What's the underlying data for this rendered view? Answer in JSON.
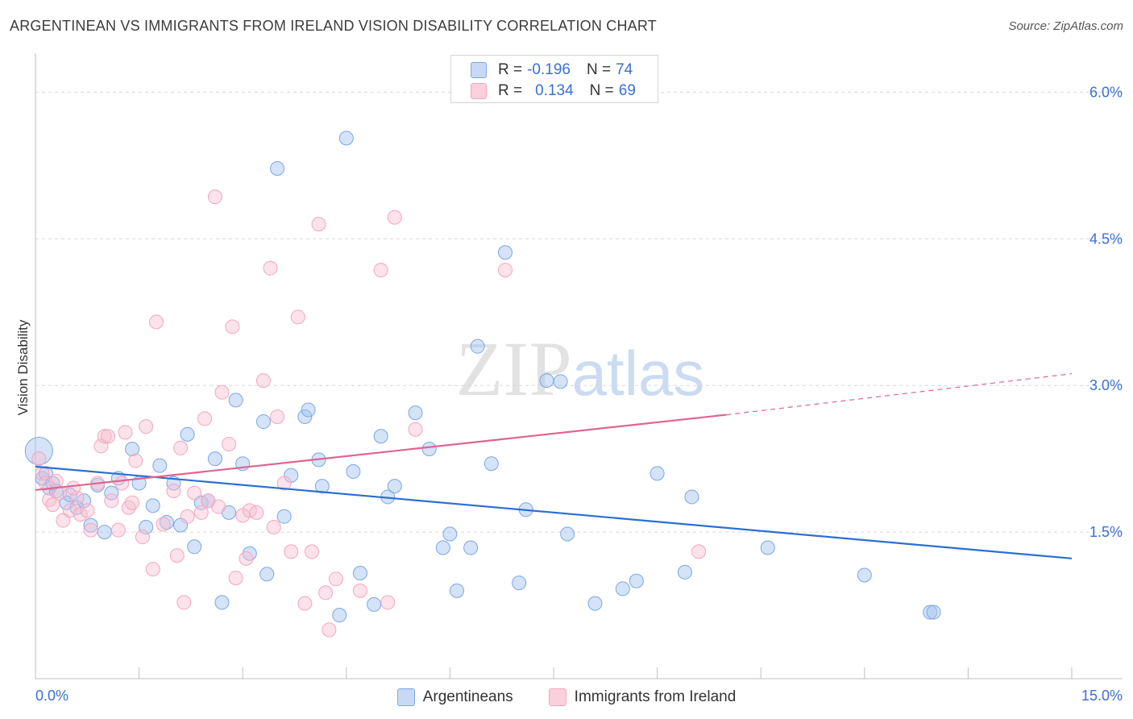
{
  "chart_data": {
    "type": "scatter",
    "title": "ARGENTINEAN VS IMMIGRANTS FROM IRELAND VISION DISABILITY CORRELATION CHART",
    "source": "Source: ZipAtlas.com",
    "ylabel": "Vision Disability",
    "xlabel": "",
    "xlim": [
      0,
      15
    ],
    "ylim": [
      0,
      6.3
    ],
    "x_tick_labels": [
      "0.0%",
      "15.0%"
    ],
    "y_ticks": [
      1.5,
      3.0,
      4.5,
      6.0
    ],
    "y_tick_labels": [
      "1.5%",
      "3.0%",
      "4.5%",
      "6.0%"
    ],
    "grid": true,
    "legend_position": "top-center",
    "watermark": "ZIPatlas",
    "series": [
      {
        "name": "Argentineans",
        "color": "#7aa6e8",
        "line_color": "#2b6fd1",
        "R": "-0.196",
        "N": "74",
        "trend": [
          [
            0,
            2.17
          ],
          [
            15,
            1.23
          ]
        ],
        "points": [
          [
            0.05,
            2.33
          ],
          [
            0.1,
            2.05
          ],
          [
            0.15,
            2.1
          ],
          [
            0.2,
            1.95
          ],
          [
            0.3,
            1.92
          ],
          [
            0.45,
            1.8
          ],
          [
            0.5,
            1.88
          ],
          [
            0.6,
            1.75
          ],
          [
            0.7,
            1.82
          ],
          [
            0.8,
            1.57
          ],
          [
            0.9,
            1.98
          ],
          [
            1.0,
            1.5
          ],
          [
            1.1,
            1.9
          ],
          [
            1.2,
            2.05
          ],
          [
            1.4,
            2.35
          ],
          [
            1.5,
            2.0
          ],
          [
            1.6,
            1.55
          ],
          [
            1.7,
            1.77
          ],
          [
            1.8,
            2.18
          ],
          [
            1.9,
            1.6
          ],
          [
            2.0,
            2.0
          ],
          [
            2.1,
            1.57
          ],
          [
            2.2,
            2.5
          ],
          [
            2.3,
            1.35
          ],
          [
            2.4,
            1.8
          ],
          [
            2.5,
            1.82
          ],
          [
            2.6,
            2.25
          ],
          [
            2.7,
            0.78
          ],
          [
            2.8,
            1.7
          ],
          [
            2.9,
            2.85
          ],
          [
            3.0,
            2.2
          ],
          [
            3.1,
            1.28
          ],
          [
            3.3,
            2.63
          ],
          [
            3.35,
            1.07
          ],
          [
            3.5,
            5.22
          ],
          [
            3.6,
            1.66
          ],
          [
            3.7,
            2.08
          ],
          [
            3.9,
            2.68
          ],
          [
            3.95,
            2.75
          ],
          [
            4.1,
            2.24
          ],
          [
            4.15,
            1.97
          ],
          [
            4.4,
            0.65
          ],
          [
            4.5,
            5.53
          ],
          [
            4.6,
            2.12
          ],
          [
            4.7,
            1.08
          ],
          [
            4.9,
            0.76
          ],
          [
            5.0,
            2.48
          ],
          [
            5.1,
            1.86
          ],
          [
            5.2,
            1.97
          ],
          [
            5.5,
            2.72
          ],
          [
            5.7,
            2.35
          ],
          [
            5.9,
            1.34
          ],
          [
            6.0,
            1.48
          ],
          [
            6.1,
            0.9
          ],
          [
            6.3,
            1.34
          ],
          [
            6.4,
            3.4
          ],
          [
            6.6,
            2.2
          ],
          [
            6.8,
            4.36
          ],
          [
            7.0,
            0.98
          ],
          [
            7.1,
            1.73
          ],
          [
            7.4,
            3.05
          ],
          [
            7.6,
            3.04
          ],
          [
            7.7,
            1.48
          ],
          [
            8.1,
            0.77
          ],
          [
            8.5,
            0.92
          ],
          [
            8.7,
            1.0
          ],
          [
            9.0,
            2.1
          ],
          [
            9.4,
            1.09
          ],
          [
            9.5,
            1.86
          ],
          [
            10.6,
            1.34
          ],
          [
            12.0,
            1.06
          ],
          [
            12.95,
            0.68
          ],
          [
            13.0,
            0.68
          ],
          [
            0.25,
            2.0
          ]
        ]
      },
      {
        "name": "Immigrants from Ireland",
        "color": "#f4a6bd",
        "line_color": "#e0648e",
        "R": "0.134",
        "N": "69",
        "trend": [
          [
            0,
            1.93
          ],
          [
            10,
            2.7
          ]
        ],
        "trend_dashed": [
          [
            10,
            2.7
          ],
          [
            15,
            3.12
          ]
        ],
        "points": [
          [
            0.05,
            2.25
          ],
          [
            0.1,
            2.1
          ],
          [
            0.15,
            2.0
          ],
          [
            0.2,
            1.83
          ],
          [
            0.25,
            1.78
          ],
          [
            0.3,
            2.02
          ],
          [
            0.35,
            1.9
          ],
          [
            0.4,
            1.62
          ],
          [
            0.5,
            1.72
          ],
          [
            0.6,
            1.85
          ],
          [
            0.65,
            1.68
          ],
          [
            0.75,
            1.72
          ],
          [
            0.8,
            1.52
          ],
          [
            0.9,
            2.0
          ],
          [
            0.95,
            2.38
          ],
          [
            1.0,
            2.48
          ],
          [
            1.05,
            2.48
          ],
          [
            1.1,
            1.82
          ],
          [
            1.2,
            1.52
          ],
          [
            1.3,
            2.52
          ],
          [
            1.35,
            1.75
          ],
          [
            1.4,
            1.8
          ],
          [
            1.45,
            2.23
          ],
          [
            1.55,
            1.45
          ],
          [
            1.6,
            2.58
          ],
          [
            1.7,
            1.12
          ],
          [
            1.75,
            3.65
          ],
          [
            1.85,
            1.58
          ],
          [
            2.0,
            1.92
          ],
          [
            2.05,
            1.26
          ],
          [
            2.1,
            2.36
          ],
          [
            2.15,
            0.78
          ],
          [
            2.2,
            1.66
          ],
          [
            2.3,
            1.9
          ],
          [
            2.4,
            1.7
          ],
          [
            2.45,
            2.66
          ],
          [
            2.5,
            1.82
          ],
          [
            2.6,
            4.93
          ],
          [
            2.65,
            1.76
          ],
          [
            2.7,
            2.93
          ],
          [
            2.8,
            2.4
          ],
          [
            2.85,
            3.6
          ],
          [
            2.9,
            1.03
          ],
          [
            3.0,
            1.67
          ],
          [
            3.05,
            1.23
          ],
          [
            3.1,
            1.72
          ],
          [
            3.2,
            1.7
          ],
          [
            3.3,
            3.05
          ],
          [
            3.4,
            4.2
          ],
          [
            3.45,
            1.55
          ],
          [
            3.5,
            2.68
          ],
          [
            3.6,
            2.0
          ],
          [
            3.7,
            1.3
          ],
          [
            3.8,
            3.7
          ],
          [
            3.9,
            0.77
          ],
          [
            4.0,
            1.3
          ],
          [
            4.1,
            4.65
          ],
          [
            4.2,
            0.88
          ],
          [
            4.25,
            0.5
          ],
          [
            4.35,
            1.02
          ],
          [
            4.7,
            0.9
          ],
          [
            5.0,
            4.18
          ],
          [
            5.1,
            0.78
          ],
          [
            5.2,
            4.72
          ],
          [
            5.5,
            2.55
          ],
          [
            6.8,
            4.18
          ],
          [
            9.6,
            1.3
          ],
          [
            1.25,
            2.0
          ],
          [
            0.55,
            1.95
          ]
        ]
      }
    ]
  }
}
